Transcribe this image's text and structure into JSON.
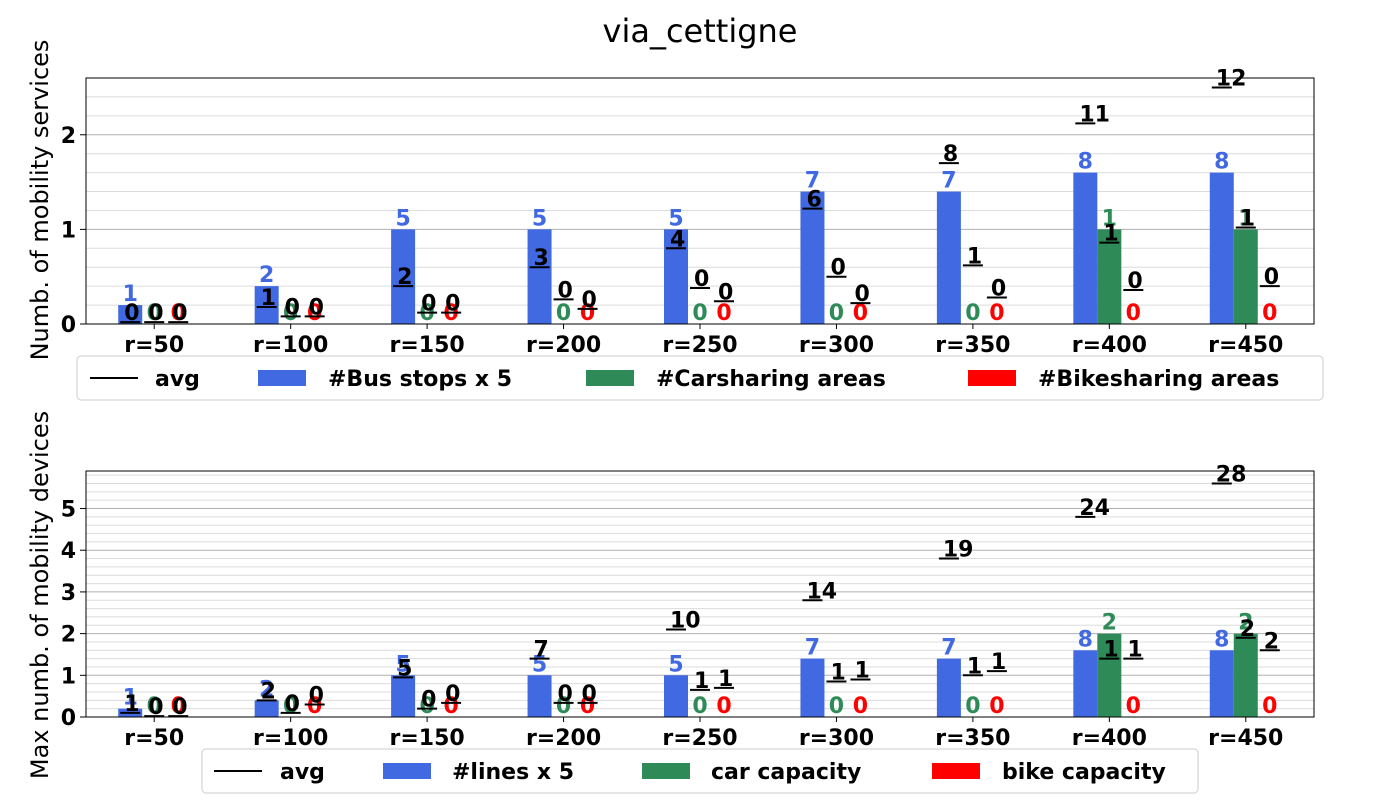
{
  "figure_title": "via_cettigne",
  "colors": {
    "avg": "#000000",
    "bus": "#4169E1",
    "car": "#2E8B57",
    "bike": "#FF0000",
    "grid_major": "#b0b0b0",
    "grid_minor": "#dcdcdc"
  },
  "chart_data": [
    {
      "type": "bar",
      "title": "via_cettigne",
      "ylabel": "Numb. of mobility services",
      "ylim": [
        0,
        2.6
      ],
      "yticks": [
        "0",
        "1",
        "2"
      ],
      "grid": true,
      "categories": [
        "r=50",
        "r=100",
        "r=150",
        "r=200",
        "r=250",
        "r=300",
        "r=350",
        "r=400",
        "r=450"
      ],
      "series": [
        {
          "name": "#Bus stops x 5",
          "color": "#4169E1",
          "values": [
            0.2,
            0.4,
            1.0,
            1.0,
            1.0,
            1.4,
            1.4,
            1.6,
            1.6
          ],
          "labels": [
            "1",
            "2",
            "5",
            "5",
            "5",
            "7",
            "7",
            "8",
            "8"
          ]
        },
        {
          "name": "#Carsharing areas",
          "color": "#2E8B57",
          "values": [
            0,
            0,
            0,
            0,
            0,
            0,
            0,
            1,
            1
          ],
          "labels": [
            "0",
            "0",
            "0",
            "0",
            "0",
            "0",
            "0",
            "1",
            "1"
          ]
        },
        {
          "name": "#Bikesharing areas",
          "color": "#FF0000",
          "values": [
            0,
            0,
            0,
            0,
            0,
            0,
            0,
            0,
            0
          ],
          "labels": [
            "0",
            "0",
            "0",
            "0",
            "0",
            "0",
            "0",
            "0",
            "0"
          ]
        }
      ],
      "avg": {
        "name": "avg",
        "values": [
          [
            0.02,
            0.02,
            0.02
          ],
          [
            0.18,
            0.08,
            0.08
          ],
          [
            0.4,
            0.12,
            0.12
          ],
          [
            0.6,
            0.26,
            0.16
          ],
          [
            0.8,
            0.38,
            0.24
          ],
          [
            1.22,
            0.5,
            0.22
          ],
          [
            1.7,
            0.62,
            0.28
          ],
          [
            2.12,
            0.86,
            0.36
          ],
          [
            2.5,
            1.02,
            0.4
          ]
        ],
        "labels": [
          [
            "0",
            "0",
            "0"
          ],
          [
            "1",
            "0",
            "0"
          ],
          [
            "2",
            "0",
            "0"
          ],
          [
            "3",
            "0",
            "0"
          ],
          [
            "4",
            "0",
            "0"
          ],
          [
            "6",
            "0",
            "0"
          ],
          [
            "8",
            "1",
            "0"
          ],
          [
            "11",
            "1",
            "0"
          ],
          [
            "12",
            "1",
            "0"
          ]
        ]
      },
      "legend": [
        "avg",
        "#Bus stops x 5",
        "#Carsharing areas",
        "#Bikesharing areas"
      ]
    },
    {
      "type": "bar",
      "ylabel": "Max numb. of mobility devices",
      "ylim": [
        0,
        5.9
      ],
      "yticks": [
        "0",
        "1",
        "2",
        "3",
        "4",
        "5"
      ],
      "grid": true,
      "categories": [
        "r=50",
        "r=100",
        "r=150",
        "r=200",
        "r=250",
        "r=300",
        "r=350",
        "r=400",
        "r=450"
      ],
      "series": [
        {
          "name": "#lines x 5",
          "color": "#4169E1",
          "values": [
            0.2,
            0.4,
            1.0,
            1.0,
            1.0,
            1.4,
            1.4,
            1.6,
            1.6
          ],
          "labels": [
            "1",
            "2",
            "5",
            "5",
            "5",
            "7",
            "7",
            "8",
            "8"
          ]
        },
        {
          "name": "car capacity",
          "color": "#2E8B57",
          "values": [
            0,
            0,
            0,
            0,
            0,
            0,
            0,
            2,
            2
          ],
          "labels": [
            "0",
            "0",
            "0",
            "0",
            "0",
            "0",
            "0",
            "2",
            "2"
          ]
        },
        {
          "name": "bike capacity",
          "color": "#FF0000",
          "values": [
            0,
            0,
            0,
            0,
            0,
            0,
            0,
            0,
            0
          ],
          "labels": [
            "0",
            "0",
            "0",
            "0",
            "0",
            "0",
            "0",
            "0",
            "0"
          ]
        }
      ],
      "avg": {
        "name": "avg",
        "values": [
          [
            0.1,
            0.02,
            0.02
          ],
          [
            0.4,
            0.1,
            0.3
          ],
          [
            0.95,
            0.2,
            0.34
          ],
          [
            1.4,
            0.34,
            0.34
          ],
          [
            2.1,
            0.65,
            0.7
          ],
          [
            2.8,
            0.85,
            0.9
          ],
          [
            3.8,
            1.0,
            1.1
          ],
          [
            4.8,
            1.4,
            1.4
          ],
          [
            5.6,
            1.9,
            1.6
          ]
        ],
        "labels": [
          [
            "1",
            "0",
            "0"
          ],
          [
            "2",
            "0",
            "0"
          ],
          [
            "5",
            "0",
            "0"
          ],
          [
            "7",
            "0",
            "0"
          ],
          [
            "10",
            "1",
            "1"
          ],
          [
            "14",
            "1",
            "1"
          ],
          [
            "19",
            "1",
            "1"
          ],
          [
            "24",
            "1",
            "1"
          ],
          [
            "28",
            "2",
            "2"
          ]
        ]
      },
      "legend": [
        "avg",
        "#lines x 5",
        "car capacity",
        "bike capacity"
      ]
    }
  ]
}
